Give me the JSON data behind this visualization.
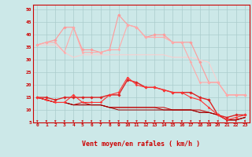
{
  "x": [
    0,
    1,
    2,
    3,
    4,
    5,
    6,
    7,
    8,
    9,
    10,
    11,
    12,
    13,
    14,
    15,
    16,
    17,
    18,
    19,
    20,
    21,
    22,
    23
  ],
  "series": [
    {
      "y": [
        36,
        37,
        38,
        43,
        43,
        34,
        34,
        33,
        34,
        48,
        44,
        43,
        39,
        40,
        40,
        37,
        37,
        37,
        29,
        21,
        21,
        16,
        16,
        16
      ],
      "color": "#ff9999",
      "lw": 0.8,
      "marker": "D",
      "ms": 1.8
    },
    {
      "y": [
        36,
        37,
        37,
        33,
        43,
        33,
        33,
        33,
        34,
        34,
        44,
        43,
        39,
        39,
        39,
        37,
        37,
        29,
        21,
        21,
        21,
        16,
        16,
        16
      ],
      "color": "#ffaaaa",
      "lw": 0.8,
      "marker": "D",
      "ms": 1.5
    },
    {
      "y": [
        36,
        36,
        36,
        33,
        31,
        32,
        32,
        32,
        32,
        32,
        32,
        32,
        32,
        32,
        32,
        31,
        31,
        31,
        30,
        29,
        21,
        16,
        16,
        16
      ],
      "color": "#ffcccc",
      "lw": 0.7,
      "marker": null,
      "ms": 0
    },
    {
      "y": [
        15,
        15,
        14,
        15,
        15,
        15,
        15,
        15,
        16,
        16,
        22,
        21,
        19,
        19,
        18,
        17,
        17,
        17,
        15,
        14,
        8,
        7,
        8,
        8
      ],
      "color": "#dd2222",
      "lw": 1.0,
      "marker": "D",
      "ms": 1.8
    },
    {
      "y": [
        15,
        14,
        13,
        13,
        16,
        13,
        13,
        13,
        16,
        17,
        23,
        20,
        19,
        19,
        18,
        17,
        17,
        15,
        14,
        11,
        8,
        6,
        7,
        8
      ],
      "color": "#ff3333",
      "lw": 0.8,
      "marker": "D",
      "ms": 1.5
    },
    {
      "y": [
        15,
        14,
        13,
        13,
        12,
        13,
        12,
        12,
        11,
        11,
        11,
        11,
        11,
        11,
        11,
        10,
        10,
        10,
        10,
        9,
        8,
        6,
        6,
        7
      ],
      "color": "#cc0000",
      "lw": 0.7,
      "marker": null,
      "ms": 0
    },
    {
      "y": [
        15,
        14,
        13,
        13,
        12,
        12,
        12,
        12,
        11,
        11,
        11,
        11,
        11,
        11,
        10,
        10,
        10,
        10,
        9,
        9,
        8,
        6,
        6,
        7
      ],
      "color": "#bb0000",
      "lw": 0.7,
      "marker": null,
      "ms": 0
    },
    {
      "y": [
        15,
        14,
        13,
        13,
        12,
        12,
        12,
        12,
        11,
        10,
        10,
        10,
        10,
        10,
        10,
        10,
        10,
        10,
        9,
        9,
        8,
        6,
        6,
        7
      ],
      "color": "#990000",
      "lw": 0.7,
      "marker": null,
      "ms": 0
    }
  ],
  "xlabel": "Vent moyen/en rafales ( km/h )",
  "ylim": [
    5,
    52
  ],
  "xlim": [
    -0.5,
    23.5
  ],
  "yticks": [
    5,
    10,
    15,
    20,
    25,
    30,
    35,
    40,
    45,
    50
  ],
  "xticks": [
    0,
    1,
    2,
    3,
    4,
    5,
    6,
    7,
    8,
    9,
    10,
    11,
    12,
    13,
    14,
    15,
    16,
    17,
    18,
    19,
    20,
    21,
    22,
    23
  ],
  "bg_color": "#cce8e8",
  "grid_color": "#aacccc",
  "tick_color": "#cc0000",
  "label_color": "#cc0000",
  "arrow_color": "#cc2222",
  "spine_color": "#cc0000"
}
